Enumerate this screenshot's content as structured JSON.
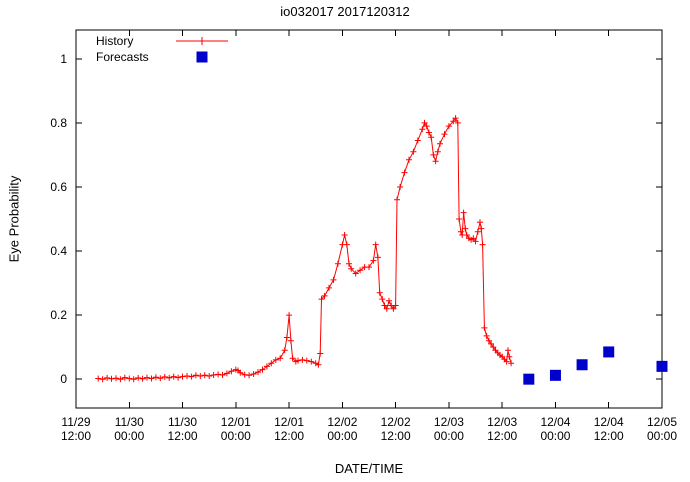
{
  "chart_data": {
    "type": "line",
    "title": "io032017 2017120312",
    "xlabel": "DATE/TIME",
    "ylabel": "Eye Probability",
    "xlim_hours": [
      0,
      132
    ],
    "ylim": [
      -0.09,
      1.09
    ],
    "grid": false,
    "legend_position": "top-left-inside",
    "x_ticks": [
      {
        "hours": 0,
        "line1": "11/29",
        "line2": "12:00"
      },
      {
        "hours": 12,
        "line1": "11/30",
        "line2": "00:00"
      },
      {
        "hours": 24,
        "line1": "11/30",
        "line2": "12:00"
      },
      {
        "hours": 36,
        "line1": "12/01",
        "line2": "00:00"
      },
      {
        "hours": 48,
        "line1": "12/01",
        "line2": "12:00"
      },
      {
        "hours": 60,
        "line1": "12/02",
        "line2": "00:00"
      },
      {
        "hours": 72,
        "line1": "12/02",
        "line2": "12:00"
      },
      {
        "hours": 84,
        "line1": "12/03",
        "line2": "00:00"
      },
      {
        "hours": 96,
        "line1": "12/03",
        "line2": "12:00"
      },
      {
        "hours": 108,
        "line1": "12/04",
        "line2": "00:00"
      },
      {
        "hours": 120,
        "line1": "12/04",
        "line2": "12:00"
      },
      {
        "hours": 132,
        "line1": "12/05",
        "line2": "00:00"
      }
    ],
    "y_ticks": [
      {
        "value": 0,
        "label": "0"
      },
      {
        "value": 0.2,
        "label": "0.2"
      },
      {
        "value": 0.4,
        "label": "0.4"
      },
      {
        "value": 0.6,
        "label": "0.6"
      },
      {
        "value": 0.8,
        "label": "0.8"
      },
      {
        "value": 1,
        "label": "1"
      }
    ],
    "series": [
      {
        "name": "History",
        "style": "line-with-plus-markers",
        "color": "#ff0000",
        "points": [
          [
            5,
            0.002
          ],
          [
            6,
            0
          ],
          [
            7,
            0.004
          ],
          [
            8,
            0.001
          ],
          [
            9,
            0.003
          ],
          [
            10,
            0
          ],
          [
            11,
            0.005
          ],
          [
            12,
            0.002
          ],
          [
            13,
            0
          ],
          [
            14,
            0.004
          ],
          [
            15,
            0.001
          ],
          [
            16,
            0.005
          ],
          [
            17,
            0.002
          ],
          [
            18,
            0.006
          ],
          [
            19,
            0.003
          ],
          [
            20,
            0.007
          ],
          [
            21,
            0.004
          ],
          [
            22,
            0.008
          ],
          [
            23,
            0.005
          ],
          [
            24,
            0.008
          ],
          [
            25,
            0.01
          ],
          [
            26,
            0.008
          ],
          [
            27,
            0.012
          ],
          [
            28,
            0.01
          ],
          [
            29,
            0.012
          ],
          [
            30,
            0.01
          ],
          [
            31,
            0.013
          ],
          [
            32,
            0.015
          ],
          [
            33,
            0.013
          ],
          [
            34,
            0.018
          ],
          [
            35,
            0.025
          ],
          [
            36,
            0.03
          ],
          [
            36.5,
            0.027
          ],
          [
            37,
            0.02
          ],
          [
            38,
            0.014
          ],
          [
            39,
            0.012
          ],
          [
            40,
            0.016
          ],
          [
            41,
            0.022
          ],
          [
            42,
            0.03
          ],
          [
            43,
            0.04
          ],
          [
            44,
            0.05
          ],
          [
            45,
            0.06
          ],
          [
            46,
            0.065
          ],
          [
            47,
            0.09
          ],
          [
            47.5,
            0.13
          ],
          [
            48,
            0.2
          ],
          [
            48.4,
            0.12
          ],
          [
            48.8,
            0.065
          ],
          [
            49.5,
            0.055
          ],
          [
            50,
            0.058
          ],
          [
            51,
            0.06
          ],
          [
            52,
            0.058
          ],
          [
            53,
            0.055
          ],
          [
            54,
            0.05
          ],
          [
            54.6,
            0.045
          ],
          [
            55,
            0.08
          ],
          [
            55.3,
            0.25
          ],
          [
            56,
            0.26
          ],
          [
            57,
            0.285
          ],
          [
            58,
            0.31
          ],
          [
            59,
            0.36
          ],
          [
            60,
            0.42
          ],
          [
            60.5,
            0.45
          ],
          [
            61,
            0.42
          ],
          [
            61.5,
            0.36
          ],
          [
            62,
            0.345
          ],
          [
            63,
            0.33
          ],
          [
            64,
            0.34
          ],
          [
            65,
            0.35
          ],
          [
            66,
            0.35
          ],
          [
            67,
            0.37
          ],
          [
            67.5,
            0.42
          ],
          [
            68,
            0.38
          ],
          [
            68.4,
            0.27
          ],
          [
            69,
            0.25
          ],
          [
            69.5,
            0.23
          ],
          [
            70,
            0.22
          ],
          [
            70.5,
            0.245
          ],
          [
            71,
            0.23
          ],
          [
            71.5,
            0.22
          ],
          [
            72,
            0.23
          ],
          [
            72.3,
            0.56
          ],
          [
            73,
            0.6
          ],
          [
            74,
            0.645
          ],
          [
            75,
            0.685
          ],
          [
            76,
            0.71
          ],
          [
            77,
            0.745
          ],
          [
            78,
            0.78
          ],
          [
            78.5,
            0.8
          ],
          [
            79,
            0.79
          ],
          [
            79.5,
            0.77
          ],
          [
            80,
            0.755
          ],
          [
            80.5,
            0.7
          ],
          [
            81,
            0.68
          ],
          [
            81.5,
            0.71
          ],
          [
            82,
            0.735
          ],
          [
            83,
            0.765
          ],
          [
            84,
            0.79
          ],
          [
            85,
            0.805
          ],
          [
            85.5,
            0.815
          ],
          [
            86,
            0.8
          ],
          [
            86.3,
            0.5
          ],
          [
            86.7,
            0.46
          ],
          [
            87,
            0.45
          ],
          [
            87.3,
            0.52
          ],
          [
            87.7,
            0.47
          ],
          [
            88,
            0.45
          ],
          [
            88.5,
            0.44
          ],
          [
            89,
            0.435
          ],
          [
            89.5,
            0.44
          ],
          [
            90,
            0.43
          ],
          [
            90.5,
            0.46
          ],
          [
            91,
            0.49
          ],
          [
            91.3,
            0.47
          ],
          [
            91.6,
            0.42
          ],
          [
            92,
            0.16
          ],
          [
            92.5,
            0.135
          ],
          [
            93,
            0.12
          ],
          [
            93.5,
            0.11
          ],
          [
            94,
            0.1
          ],
          [
            94.5,
            0.09
          ],
          [
            95,
            0.082
          ],
          [
            95.5,
            0.075
          ],
          [
            96,
            0.07
          ],
          [
            96.5,
            0.062
          ],
          [
            97,
            0.055
          ],
          [
            97.3,
            0.09
          ],
          [
            97.6,
            0.07
          ],
          [
            98,
            0.05
          ]
        ]
      },
      {
        "name": "Forecasts",
        "style": "filled-square-markers",
        "color": "#0000cc",
        "points": [
          [
            102,
            0.0
          ],
          [
            108,
            0.012
          ],
          [
            114,
            0.045
          ],
          [
            120,
            0.085
          ],
          [
            132,
            0.04
          ]
        ]
      }
    ]
  }
}
